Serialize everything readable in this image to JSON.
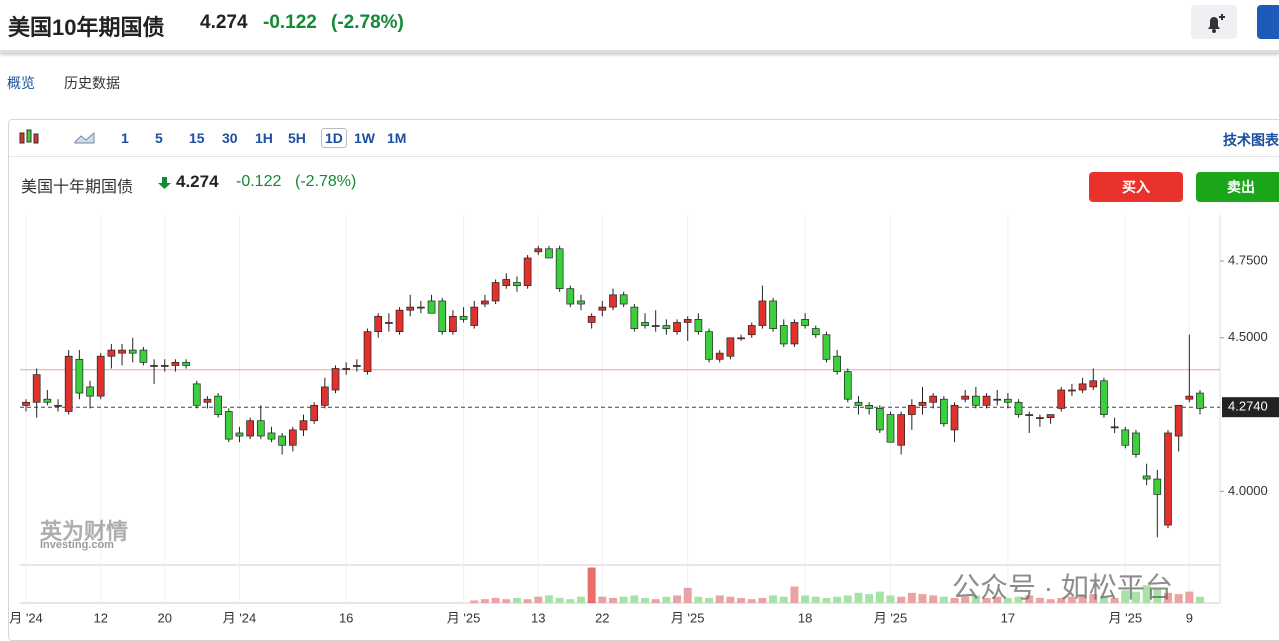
{
  "header": {
    "title": "美国10年期国债",
    "price": "4.274",
    "change": "-0.122",
    "change_pct": "(-2.78%)"
  },
  "tabs": [
    "概览",
    "历史数据"
  ],
  "toolbar": {
    "intervals": [
      "1",
      "5",
      "15",
      "30",
      "1H",
      "5H",
      "1D",
      "1W",
      "1M"
    ],
    "active": "1D",
    "technical": "技术图表"
  },
  "legend": {
    "name": "美国十年期国债",
    "price": "4.274",
    "change": "-0.122",
    "change_pct": "(-2.78%)"
  },
  "buttons": {
    "buy": "买入",
    "sell": "卖出"
  },
  "watermark": {
    "cn": "英为财情",
    "en": "Investing.com"
  },
  "overlay": "公众号 · 如松平台",
  "chart_data": {
    "type": "candlestick",
    "ylim": [
      3.76,
      4.9
    ],
    "yticks": [
      {
        "value": 4.75,
        "label": "4.7500"
      },
      {
        "value": 4.5,
        "label": "4.5000"
      },
      {
        "value": 4.0,
        "label": "4.0000"
      }
    ],
    "current": {
      "value": 4.274,
      "label": "4.2740"
    },
    "previous_close": 4.396,
    "up_color": "#e0312c",
    "down_color": "#3ccf3c",
    "vol_up_color": "#eaa3a3",
    "vol_down_color": "#a9e2a9",
    "vlim": [
      0,
      30
    ],
    "categories": [
      "月 '24",
      null,
      null,
      null,
      null,
      null,
      null,
      "12",
      null,
      null,
      null,
      null,
      null,
      "20",
      null,
      null,
      null,
      null,
      null,
      null,
      "月 '24",
      null,
      null,
      null,
      null,
      null,
      null,
      null,
      null,
      null,
      "16",
      null,
      null,
      null,
      null,
      null,
      null,
      null,
      null,
      null,
      null,
      "月 '25",
      null,
      null,
      null,
      null,
      null,
      null,
      "13",
      null,
      null,
      null,
      null,
      null,
      "22",
      null,
      null,
      null,
      null,
      null,
      null,
      null,
      "月 '25",
      null,
      null,
      null,
      null,
      null,
      null,
      null,
      null,
      null,
      null,
      "18",
      null,
      null,
      null,
      null,
      null,
      null,
      null,
      "月 '25",
      null,
      null,
      null,
      null,
      null,
      null,
      null,
      null,
      null,
      null,
      "17",
      null,
      null,
      null,
      null,
      null,
      null,
      null,
      null,
      null,
      null,
      "月 '25",
      null,
      null,
      null,
      null,
      null,
      "9",
      null
    ],
    "candles": [
      [
        4.28,
        4.3,
        4.26,
        4.29
      ],
      [
        4.29,
        4.4,
        4.24,
        4.38
      ],
      [
        4.3,
        4.33,
        4.28,
        4.29
      ],
      [
        4.28,
        4.3,
        4.26,
        4.28
      ],
      [
        4.26,
        4.46,
        4.25,
        4.44
      ],
      [
        4.43,
        4.46,
        4.3,
        4.32
      ],
      [
        4.34,
        4.36,
        4.27,
        4.31
      ],
      [
        4.31,
        4.45,
        4.3,
        4.44
      ],
      [
        4.44,
        4.48,
        4.4,
        4.46
      ],
      [
        4.45,
        4.48,
        4.41,
        4.46
      ],
      [
        4.46,
        4.5,
        4.42,
        4.45
      ],
      [
        4.46,
        4.47,
        4.41,
        4.42
      ],
      [
        4.41,
        4.43,
        4.35,
        4.41
      ],
      [
        4.41,
        4.43,
        4.39,
        4.41
      ],
      [
        4.41,
        4.43,
        4.39,
        4.42
      ],
      [
        4.42,
        4.43,
        4.4,
        4.41
      ],
      [
        4.35,
        4.36,
        4.27,
        4.28
      ],
      [
        4.29,
        4.31,
        4.27,
        4.3
      ],
      [
        4.31,
        4.32,
        4.24,
        4.25
      ],
      [
        4.26,
        4.27,
        4.16,
        4.17
      ],
      [
        4.19,
        4.21,
        4.16,
        4.18
      ],
      [
        4.18,
        4.24,
        4.17,
        4.23
      ],
      [
        4.23,
        4.28,
        4.17,
        4.18
      ],
      [
        4.19,
        4.21,
        4.16,
        4.17
      ],
      [
        4.18,
        4.19,
        4.12,
        4.15
      ],
      [
        4.15,
        4.21,
        4.13,
        4.2
      ],
      [
        4.2,
        4.25,
        4.18,
        4.23
      ],
      [
        4.23,
        4.29,
        4.22,
        4.28
      ],
      [
        4.28,
        4.37,
        4.27,
        4.34
      ],
      [
        4.33,
        4.41,
        4.32,
        4.4
      ],
      [
        4.4,
        4.42,
        4.38,
        4.4
      ],
      [
        4.41,
        4.43,
        4.39,
        4.41
      ],
      [
        4.39,
        4.53,
        4.38,
        4.52
      ],
      [
        4.52,
        4.58,
        4.5,
        4.57
      ],
      [
        4.55,
        4.58,
        4.52,
        4.55
      ],
      [
        4.52,
        4.6,
        4.51,
        4.59
      ],
      [
        4.59,
        4.64,
        4.57,
        4.6
      ],
      [
        4.6,
        4.62,
        4.58,
        4.6
      ],
      [
        4.62,
        4.64,
        4.58,
        4.58
      ],
      [
        4.62,
        4.63,
        4.51,
        4.52
      ],
      [
        4.52,
        4.59,
        4.51,
        4.57
      ],
      [
        4.57,
        4.6,
        4.55,
        4.56
      ],
      [
        4.54,
        4.62,
        4.53,
        4.6
      ],
      [
        4.61,
        4.64,
        4.6,
        4.62
      ],
      [
        4.62,
        4.69,
        4.61,
        4.68
      ],
      [
        4.67,
        4.71,
        4.66,
        4.69
      ],
      [
        4.68,
        4.7,
        4.65,
        4.67
      ],
      [
        4.67,
        4.77,
        4.66,
        4.76
      ],
      [
        4.78,
        4.8,
        4.77,
        4.79
      ],
      [
        4.79,
        4.8,
        4.76,
        4.76
      ],
      [
        4.79,
        4.8,
        4.65,
        4.66
      ],
      [
        4.66,
        4.67,
        4.6,
        4.61
      ],
      [
        4.62,
        4.64,
        4.59,
        4.61
      ],
      [
        4.55,
        4.58,
        4.53,
        4.57
      ],
      [
        4.59,
        4.62,
        4.57,
        4.6
      ],
      [
        4.6,
        4.66,
        4.59,
        4.64
      ],
      [
        4.64,
        4.65,
        4.6,
        4.61
      ],
      [
        4.6,
        4.61,
        4.52,
        4.53
      ],
      [
        4.55,
        4.58,
        4.53,
        4.54
      ],
      [
        4.54,
        4.59,
        4.52,
        4.54
      ],
      [
        4.54,
        4.56,
        4.51,
        4.53
      ],
      [
        4.52,
        4.56,
        4.51,
        4.55
      ],
      [
        4.55,
        4.57,
        4.49,
        4.56
      ],
      [
        4.56,
        4.58,
        4.51,
        4.52
      ],
      [
        4.52,
        4.53,
        4.42,
        4.43
      ],
      [
        4.43,
        4.46,
        4.42,
        4.45
      ],
      [
        4.44,
        4.5,
        4.43,
        4.5
      ],
      [
        4.5,
        4.51,
        4.49,
        4.5
      ],
      [
        4.51,
        4.55,
        4.5,
        4.54
      ],
      [
        4.54,
        4.67,
        4.53,
        4.62
      ],
      [
        4.62,
        4.63,
        4.52,
        4.53
      ],
      [
        4.54,
        4.56,
        4.47,
        4.48
      ],
      [
        4.48,
        4.56,
        4.47,
        4.55
      ],
      [
        4.56,
        4.58,
        4.53,
        4.54
      ],
      [
        4.53,
        4.54,
        4.5,
        4.51
      ],
      [
        4.51,
        4.52,
        4.42,
        4.43
      ],
      [
        4.44,
        4.46,
        4.38,
        4.39
      ],
      [
        4.39,
        4.4,
        4.29,
        4.3
      ],
      [
        4.29,
        4.31,
        4.25,
        4.28
      ],
      [
        4.28,
        4.29,
        4.25,
        4.27
      ],
      [
        4.27,
        4.28,
        4.19,
        4.2
      ],
      [
        4.25,
        4.26,
        4.16,
        4.16
      ],
      [
        4.15,
        4.26,
        4.12,
        4.25
      ],
      [
        4.25,
        4.3,
        4.2,
        4.28
      ],
      [
        4.28,
        4.34,
        4.25,
        4.29
      ],
      [
        4.29,
        4.32,
        4.27,
        4.31
      ],
      [
        4.3,
        4.31,
        4.21,
        4.22
      ],
      [
        4.2,
        4.29,
        4.16,
        4.28
      ],
      [
        4.3,
        4.33,
        4.29,
        4.31
      ],
      [
        4.31,
        4.34,
        4.27,
        4.28
      ],
      [
        4.28,
        4.32,
        4.27,
        4.31
      ],
      [
        4.3,
        4.33,
        4.28,
        4.3
      ],
      [
        4.3,
        4.32,
        4.27,
        4.29
      ],
      [
        4.29,
        4.3,
        4.24,
        4.25
      ],
      [
        4.25,
        4.26,
        4.19,
        4.25
      ],
      [
        4.24,
        4.25,
        4.21,
        4.24
      ],
      [
        4.24,
        4.25,
        4.22,
        4.25
      ],
      [
        4.27,
        4.34,
        4.26,
        4.33
      ],
      [
        4.33,
        4.35,
        4.31,
        4.33
      ],
      [
        4.33,
        4.37,
        4.32,
        4.35
      ],
      [
        4.34,
        4.4,
        4.33,
        4.36
      ],
      [
        4.36,
        4.37,
        4.24,
        4.25
      ],
      [
        4.21,
        4.24,
        4.19,
        4.21
      ],
      [
        4.2,
        4.21,
        4.14,
        4.15
      ],
      [
        4.19,
        4.2,
        4.11,
        4.12
      ],
      [
        4.05,
        4.09,
        4.02,
        4.04
      ],
      [
        4.04,
        4.07,
        3.85,
        3.99
      ],
      [
        3.89,
        4.2,
        3.88,
        4.19
      ],
      [
        4.18,
        4.28,
        4.13,
        4.28
      ],
      [
        4.3,
        4.51,
        4.29,
        4.31
      ],
      [
        4.32,
        4.33,
        4.25,
        4.27
      ]
    ],
    "volume": [
      null,
      null,
      null,
      null,
      null,
      null,
      null,
      null,
      null,
      null,
      null,
      null,
      null,
      null,
      null,
      null,
      null,
      null,
      null,
      null,
      null,
      null,
      null,
      null,
      null,
      null,
      null,
      null,
      null,
      null,
      null,
      null,
      null,
      null,
      null,
      null,
      null,
      null,
      null,
      null,
      null,
      null,
      2,
      3,
      4,
      3,
      4,
      3,
      5,
      6,
      4,
      3,
      5,
      28,
      5,
      4,
      5,
      6,
      4,
      3,
      5,
      6,
      12,
      5,
      4,
      6,
      5,
      4,
      3,
      4,
      6,
      5,
      13,
      6,
      5,
      4,
      5,
      6,
      8,
      7,
      9,
      6,
      5,
      8,
      7,
      6,
      5,
      4,
      5,
      6,
      4,
      5,
      4,
      5,
      6,
      4,
      3,
      4,
      5,
      6,
      7,
      5,
      4,
      10,
      9,
      14,
      11,
      8,
      7,
      9,
      5
    ]
  }
}
